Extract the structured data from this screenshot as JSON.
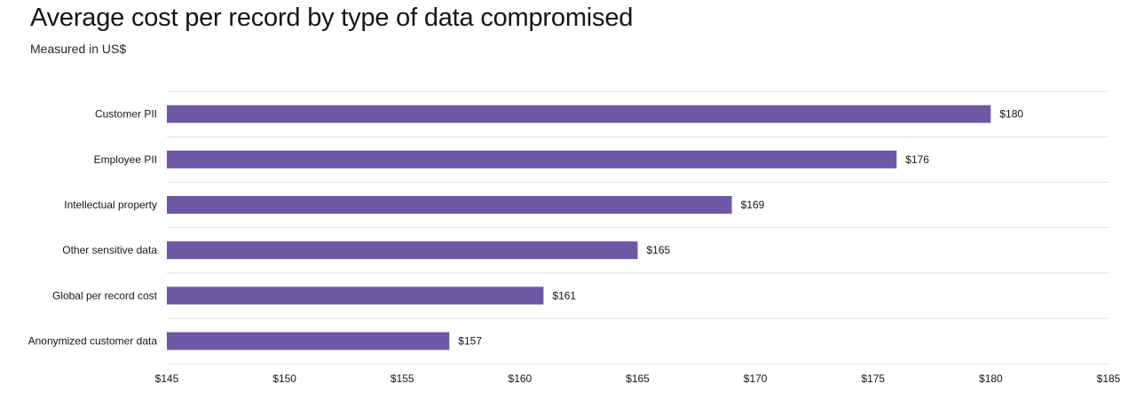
{
  "title": "Average cost per record by type of data compromised",
  "subtitle": "Measured in US$",
  "colors": {
    "bar": "#6f57a5",
    "grid": "#e0e0e0",
    "text": "#161616"
  },
  "chart_data": {
    "type": "bar",
    "orientation": "horizontal",
    "title": "Average cost per record by type of data compromised",
    "subtitle": "Measured in US$",
    "categories": [
      "Customer PII",
      "Employee PII",
      "Intellectual property",
      "Other sensitive data",
      "Global per record cost",
      "Anonymized customer data"
    ],
    "values": [
      180,
      176,
      169,
      165,
      161,
      157
    ],
    "value_labels": [
      "$180",
      "$176",
      "$169",
      "$165",
      "$161",
      "$157"
    ],
    "xlim": [
      145,
      185
    ],
    "xticks": [
      145,
      150,
      155,
      160,
      165,
      170,
      175,
      180,
      185
    ],
    "xtick_labels": [
      "$145",
      "$150",
      "$155",
      "$160",
      "$165",
      "$170",
      "$175",
      "$180",
      "$185"
    ],
    "xlabel": "",
    "ylabel": "",
    "grid": "horizontal separators",
    "legend": "none"
  }
}
